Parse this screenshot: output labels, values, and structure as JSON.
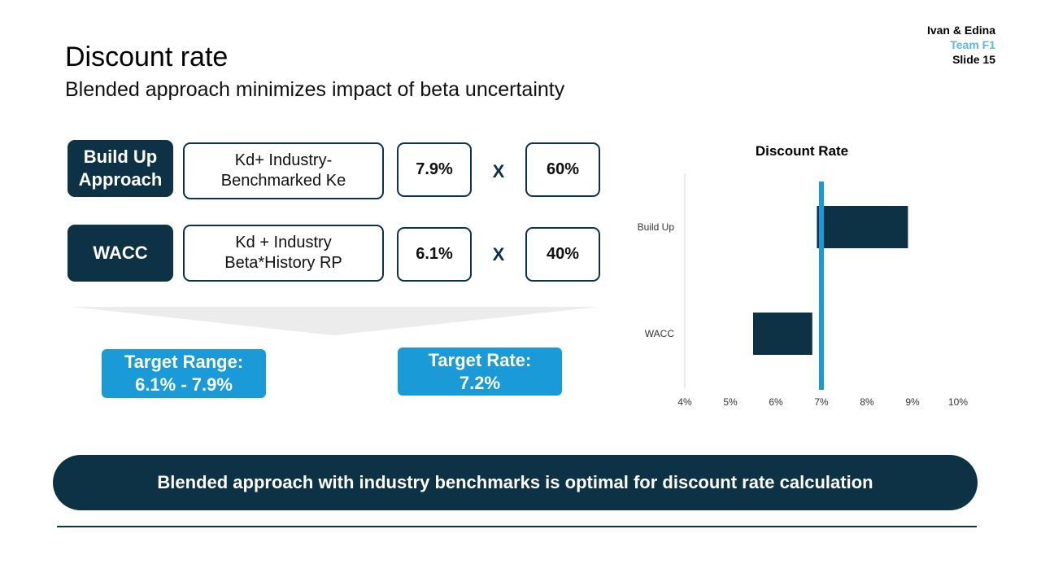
{
  "header": {
    "title": "Discount rate",
    "subtitle": "Blended approach minimizes impact of beta uncertainty"
  },
  "meta": {
    "authors": "Ivan & Edina",
    "team": "Team F1",
    "slide": "Slide 15"
  },
  "approaches": [
    {
      "name_line1": "Build Up",
      "name_line2": "Approach",
      "method_line1": "Kd+ Industry-",
      "method_line2": "Benchmarked Ke",
      "rate": "7.9%",
      "operator": "X",
      "weight": "60%"
    },
    {
      "name_line1": "WACC",
      "name_line2": "",
      "method_line1": "Kd + Industry",
      "method_line2": "Beta*History RP",
      "rate": "6.1%",
      "operator": "X",
      "weight": "40%"
    }
  ],
  "targets": {
    "range_label": "Target Range:",
    "range_value": "6.1% - 7.9%",
    "rate_label": "Target Rate:",
    "rate_value": "7.2%"
  },
  "banner": {
    "text": "Blended approach with industry benchmarks is optimal for discount rate calculation"
  },
  "colors": {
    "dark": "#0d3246",
    "accent_blue": "#1a9ad6",
    "team_blue": "#5bb8de",
    "arrow_gray": "#ececec"
  },
  "chart_data": {
    "type": "bar",
    "orientation": "horizontal",
    "title": "Discount Rate",
    "categories": [
      "Build Up",
      "WACC"
    ],
    "ranges": [
      [
        6.9,
        8.9
      ],
      [
        5.5,
        6.8
      ]
    ],
    "reference_line": 7.0,
    "xlim": [
      4,
      10
    ],
    "xticks": [
      "4%",
      "5%",
      "6%",
      "7%",
      "8%",
      "9%",
      "10%"
    ],
    "grid": false,
    "bar_color": "#0d3246",
    "line_color": "#1a9ad6"
  }
}
